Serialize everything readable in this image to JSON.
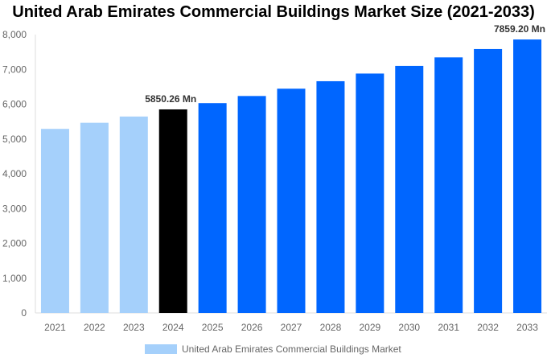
{
  "chart_data": {
    "type": "bar",
    "title": "United Arab Emirates Commercial Buildings Market Size (2021-2033)",
    "xlabel": "",
    "ylabel": "",
    "ylim": [
      0,
      8000
    ],
    "yticks": [
      0,
      1000,
      2000,
      3000,
      4000,
      5000,
      6000,
      7000,
      8000
    ],
    "ytick_labels": [
      "0",
      "1,000",
      "2,000",
      "3,000",
      "4,000",
      "5,000",
      "6,000",
      "7,000",
      "8,000"
    ],
    "grid": false,
    "legend_position": "bottom",
    "categories": [
      "2021",
      "2022",
      "2023",
      "2024",
      "2025",
      "2026",
      "2027",
      "2028",
      "2029",
      "2030",
      "2031",
      "2032",
      "2033"
    ],
    "series": [
      {
        "name": "United Arab Emirates Commercial Buildings Market",
        "values": [
          5290,
          5465,
          5645,
          5850.26,
          6030,
          6235,
          6445,
          6660,
          6880,
          7100,
          7345,
          7585,
          7859.2
        ]
      }
    ],
    "bar_colors": [
      "#A5D0FB",
      "#A5D0FB",
      "#A5D0FB",
      "#000000",
      "#0066FF",
      "#0066FF",
      "#0066FF",
      "#0066FF",
      "#0066FF",
      "#0066FF",
      "#0066FF",
      "#0066FF",
      "#0066FF"
    ],
    "data_labels": [
      {
        "category": "2024",
        "text": "5850.26 Mn"
      },
      {
        "category": "2033",
        "text": "7859.20 Mn"
      }
    ],
    "legend_color": "#A5D0FB"
  }
}
